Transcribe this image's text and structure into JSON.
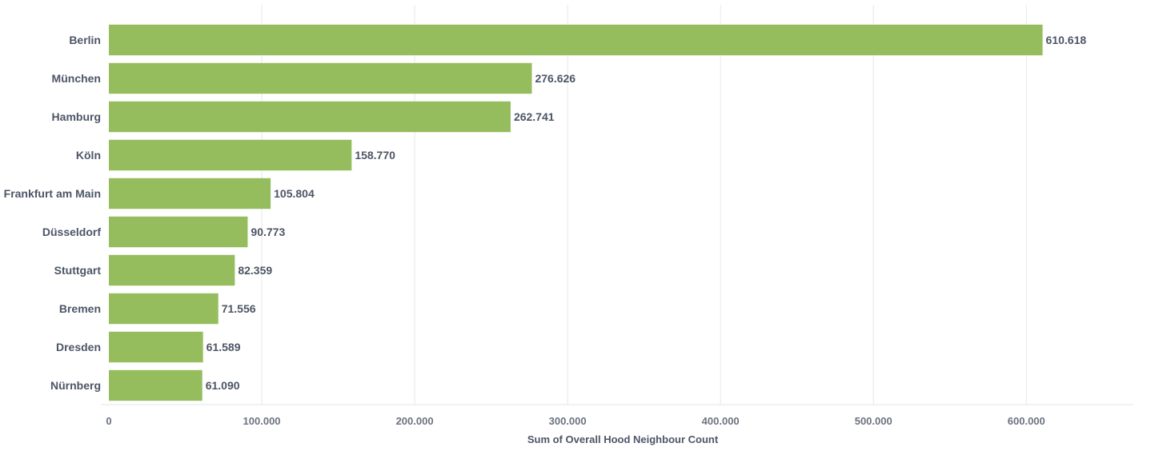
{
  "chart_data": {
    "type": "bar",
    "orientation": "horizontal",
    "categories": [
      "Berlin",
      "München",
      "Hamburg",
      "Köln",
      "Frankfurt am Main",
      "Düsseldorf",
      "Stuttgart",
      "Bremen",
      "Dresden",
      "Nürnberg"
    ],
    "values": [
      610618,
      276626,
      262741,
      158770,
      105804,
      90773,
      82359,
      71556,
      61589,
      61090
    ],
    "value_labels": [
      "610.618",
      "276.626",
      "262.741",
      "158.770",
      "105.804",
      "90.773",
      "82.359",
      "71.556",
      "61.589",
      "61.090"
    ],
    "xlabel": "Sum of Overall Hood Neighbour Count",
    "ylabel": "",
    "xlim": [
      0,
      670000
    ],
    "xticks": [
      0,
      100000,
      200000,
      300000,
      400000,
      500000,
      600000
    ],
    "xtick_labels": [
      "0",
      "100.000",
      "200.000",
      "300.000",
      "400.000",
      "500.000",
      "600.000"
    ],
    "grid": "vertical",
    "legend": "none",
    "bar_color": "#95bd5e"
  }
}
